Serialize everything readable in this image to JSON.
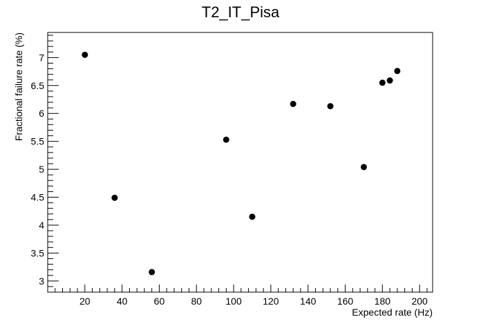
{
  "chart_data": {
    "type": "scatter",
    "title": "T2_IT_Pisa",
    "xlabel": "Expected rate (Hz)",
    "ylabel": "Fractional failure rate (%)",
    "xlim": [
      0,
      207
    ],
    "ylim": [
      2.8,
      7.45
    ],
    "x_ticks": [
      20,
      40,
      60,
      80,
      100,
      120,
      140,
      160,
      180,
      200
    ],
    "y_ticks": [
      3,
      3.5,
      4,
      4.5,
      5,
      5.5,
      6,
      6.5,
      7
    ],
    "grid": false,
    "points": [
      {
        "x": 20,
        "y": 7.05
      },
      {
        "x": 36,
        "y": 4.49
      },
      {
        "x": 56,
        "y": 3.16
      },
      {
        "x": 96,
        "y": 5.53
      },
      {
        "x": 110,
        "y": 4.15
      },
      {
        "x": 132,
        "y": 6.17
      },
      {
        "x": 152,
        "y": 6.13
      },
      {
        "x": 170,
        "y": 5.04
      },
      {
        "x": 180,
        "y": 6.55
      },
      {
        "x": 184,
        "y": 6.59
      },
      {
        "x": 188,
        "y": 6.76
      }
    ],
    "marker_color": "#000000"
  }
}
